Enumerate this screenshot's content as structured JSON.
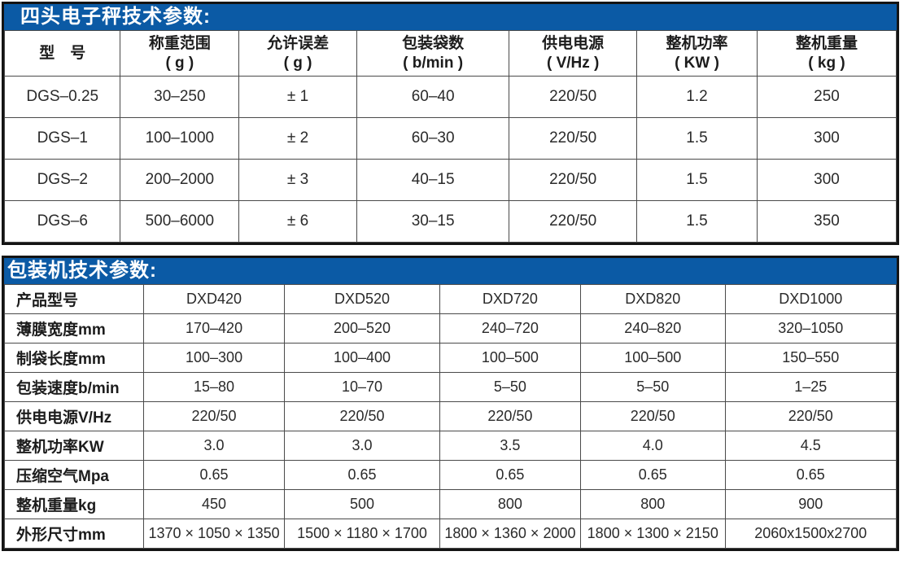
{
  "colors": {
    "title_bar_blue": "#0b5aa5",
    "title_text_white": "#ffffff",
    "outer_border_black": "#141414",
    "grid_line_gray": "#4a4a4a",
    "cell_text": "#2a2a2a"
  },
  "scale_table": {
    "title": "四头电子秤技术参数:",
    "headers": [
      [
        "型　号"
      ],
      [
        "称重范围",
        "( g )"
      ],
      [
        "允许误差",
        "( g )"
      ],
      [
        "包装袋数",
        "( b/min )"
      ],
      [
        "供电电源",
        "( V/Hz )"
      ],
      [
        "整机功率",
        "( KW )"
      ],
      [
        "整机重量",
        "( kg )"
      ]
    ],
    "rows": [
      [
        "DGS–0.25",
        "30–250",
        "± 1",
        "60–40",
        "220/50",
        "1.2",
        "250"
      ],
      [
        "DGS–1",
        "100–1000",
        "± 2",
        "60–30",
        "220/50",
        "1.5",
        "300"
      ],
      [
        "DGS–2",
        "200–2000",
        "± 3",
        "40–15",
        "220/50",
        "1.5",
        "300"
      ],
      [
        "DGS–6",
        "500–6000",
        "± 6",
        "30–15",
        "220/50",
        "1.5",
        "350"
      ]
    ]
  },
  "packer_table": {
    "title": "包装机技术参数:",
    "rows": [
      [
        "产品型号",
        "DXD420",
        "DXD520",
        "DXD720",
        "DXD820",
        "DXD1000"
      ],
      [
        "薄膜宽度mm",
        "170–420",
        "200–520",
        "240–720",
        "240–820",
        "320–1050"
      ],
      [
        "制袋长度mm",
        "100–300",
        "100–400",
        "100–500",
        "100–500",
        "150–550"
      ],
      [
        "包装速度b/min",
        "15–80",
        "10–70",
        "5–50",
        "5–50",
        "1–25"
      ],
      [
        "供电电源V/Hz",
        "220/50",
        "220/50",
        "220/50",
        "220/50",
        "220/50"
      ],
      [
        "整机功率KW",
        "3.0",
        "3.0",
        "3.5",
        "4.0",
        "4.5"
      ],
      [
        "压缩空气Mpa",
        "0.65",
        "0.65",
        "0.65",
        "0.65",
        "0.65"
      ],
      [
        "整机重量kg",
        "450",
        "500",
        "800",
        "800",
        "900"
      ],
      [
        "外形尺寸mm",
        "1370 × 1050 × 1350",
        "1500 × 1180 × 1700",
        "1800 × 1360 × 2000",
        "1800 × 1300 × 2150",
        "2060x1500x2700"
      ]
    ]
  }
}
